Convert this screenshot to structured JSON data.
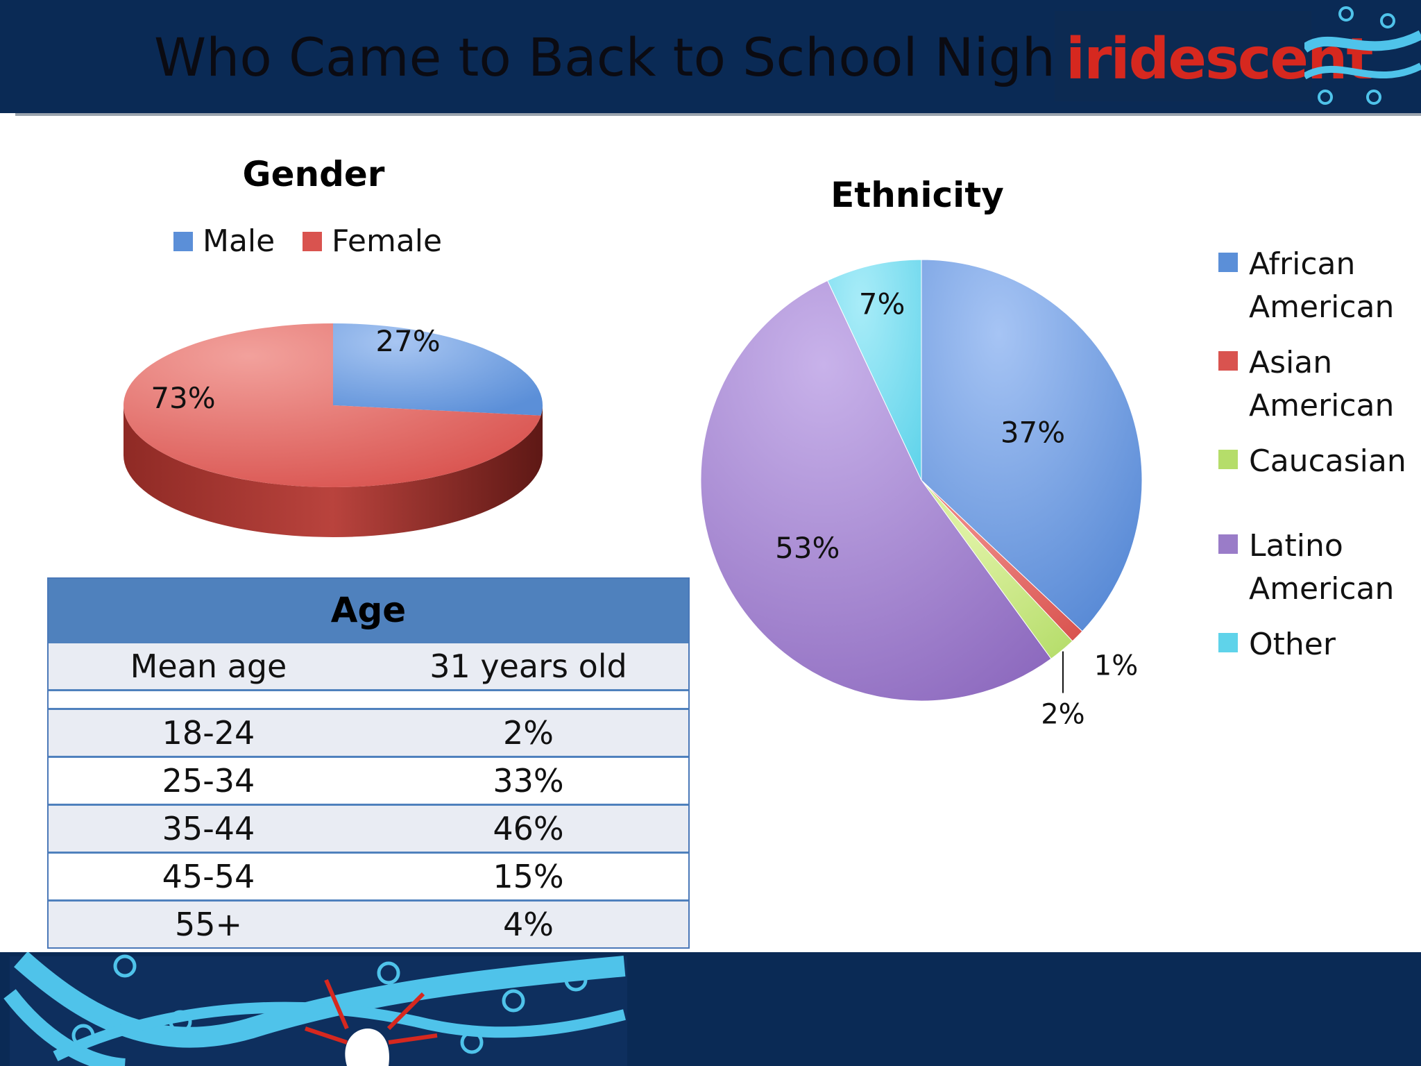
{
  "slide": {
    "title": "Who Came to Back to School Night?",
    "logo_text": "iridescent",
    "colors": {
      "header_bg": "#0a2a55",
      "logo_red": "#d6281f"
    }
  },
  "chart_data": [
    {
      "type": "pie",
      "title": "Gender",
      "labels": [
        "Male",
        "Female"
      ],
      "values": [
        27,
        73
      ],
      "data_labels": [
        "27%",
        "73%"
      ],
      "colors": [
        "#5b8fd8",
        "#d9534f"
      ],
      "legend_position": "top",
      "style": "3d"
    },
    {
      "type": "pie",
      "title": "Ethnicity",
      "labels": [
        "African American",
        "Asian American",
        "Caucasian",
        "Latino American",
        "Other"
      ],
      "values": [
        37,
        1,
        2,
        53,
        7
      ],
      "data_labels": [
        "37%",
        "1%",
        "2%",
        "53%",
        "7%"
      ],
      "colors": [
        "#5b8fd8",
        "#d9534f",
        "#b5dd6a",
        "#9a7cc8",
        "#5fd3ea"
      ],
      "legend_position": "right"
    },
    {
      "type": "table",
      "title": "Age",
      "summary": {
        "label": "Mean age",
        "value": "31 years old"
      },
      "rows": [
        {
          "range": "18-24",
          "percent": "2%"
        },
        {
          "range": "25-34",
          "percent": "33%"
        },
        {
          "range": "35-44",
          "percent": "46%"
        },
        {
          "range": "45-54",
          "percent": "15%"
        },
        {
          "range": "55+",
          "percent": "4%"
        }
      ]
    }
  ]
}
